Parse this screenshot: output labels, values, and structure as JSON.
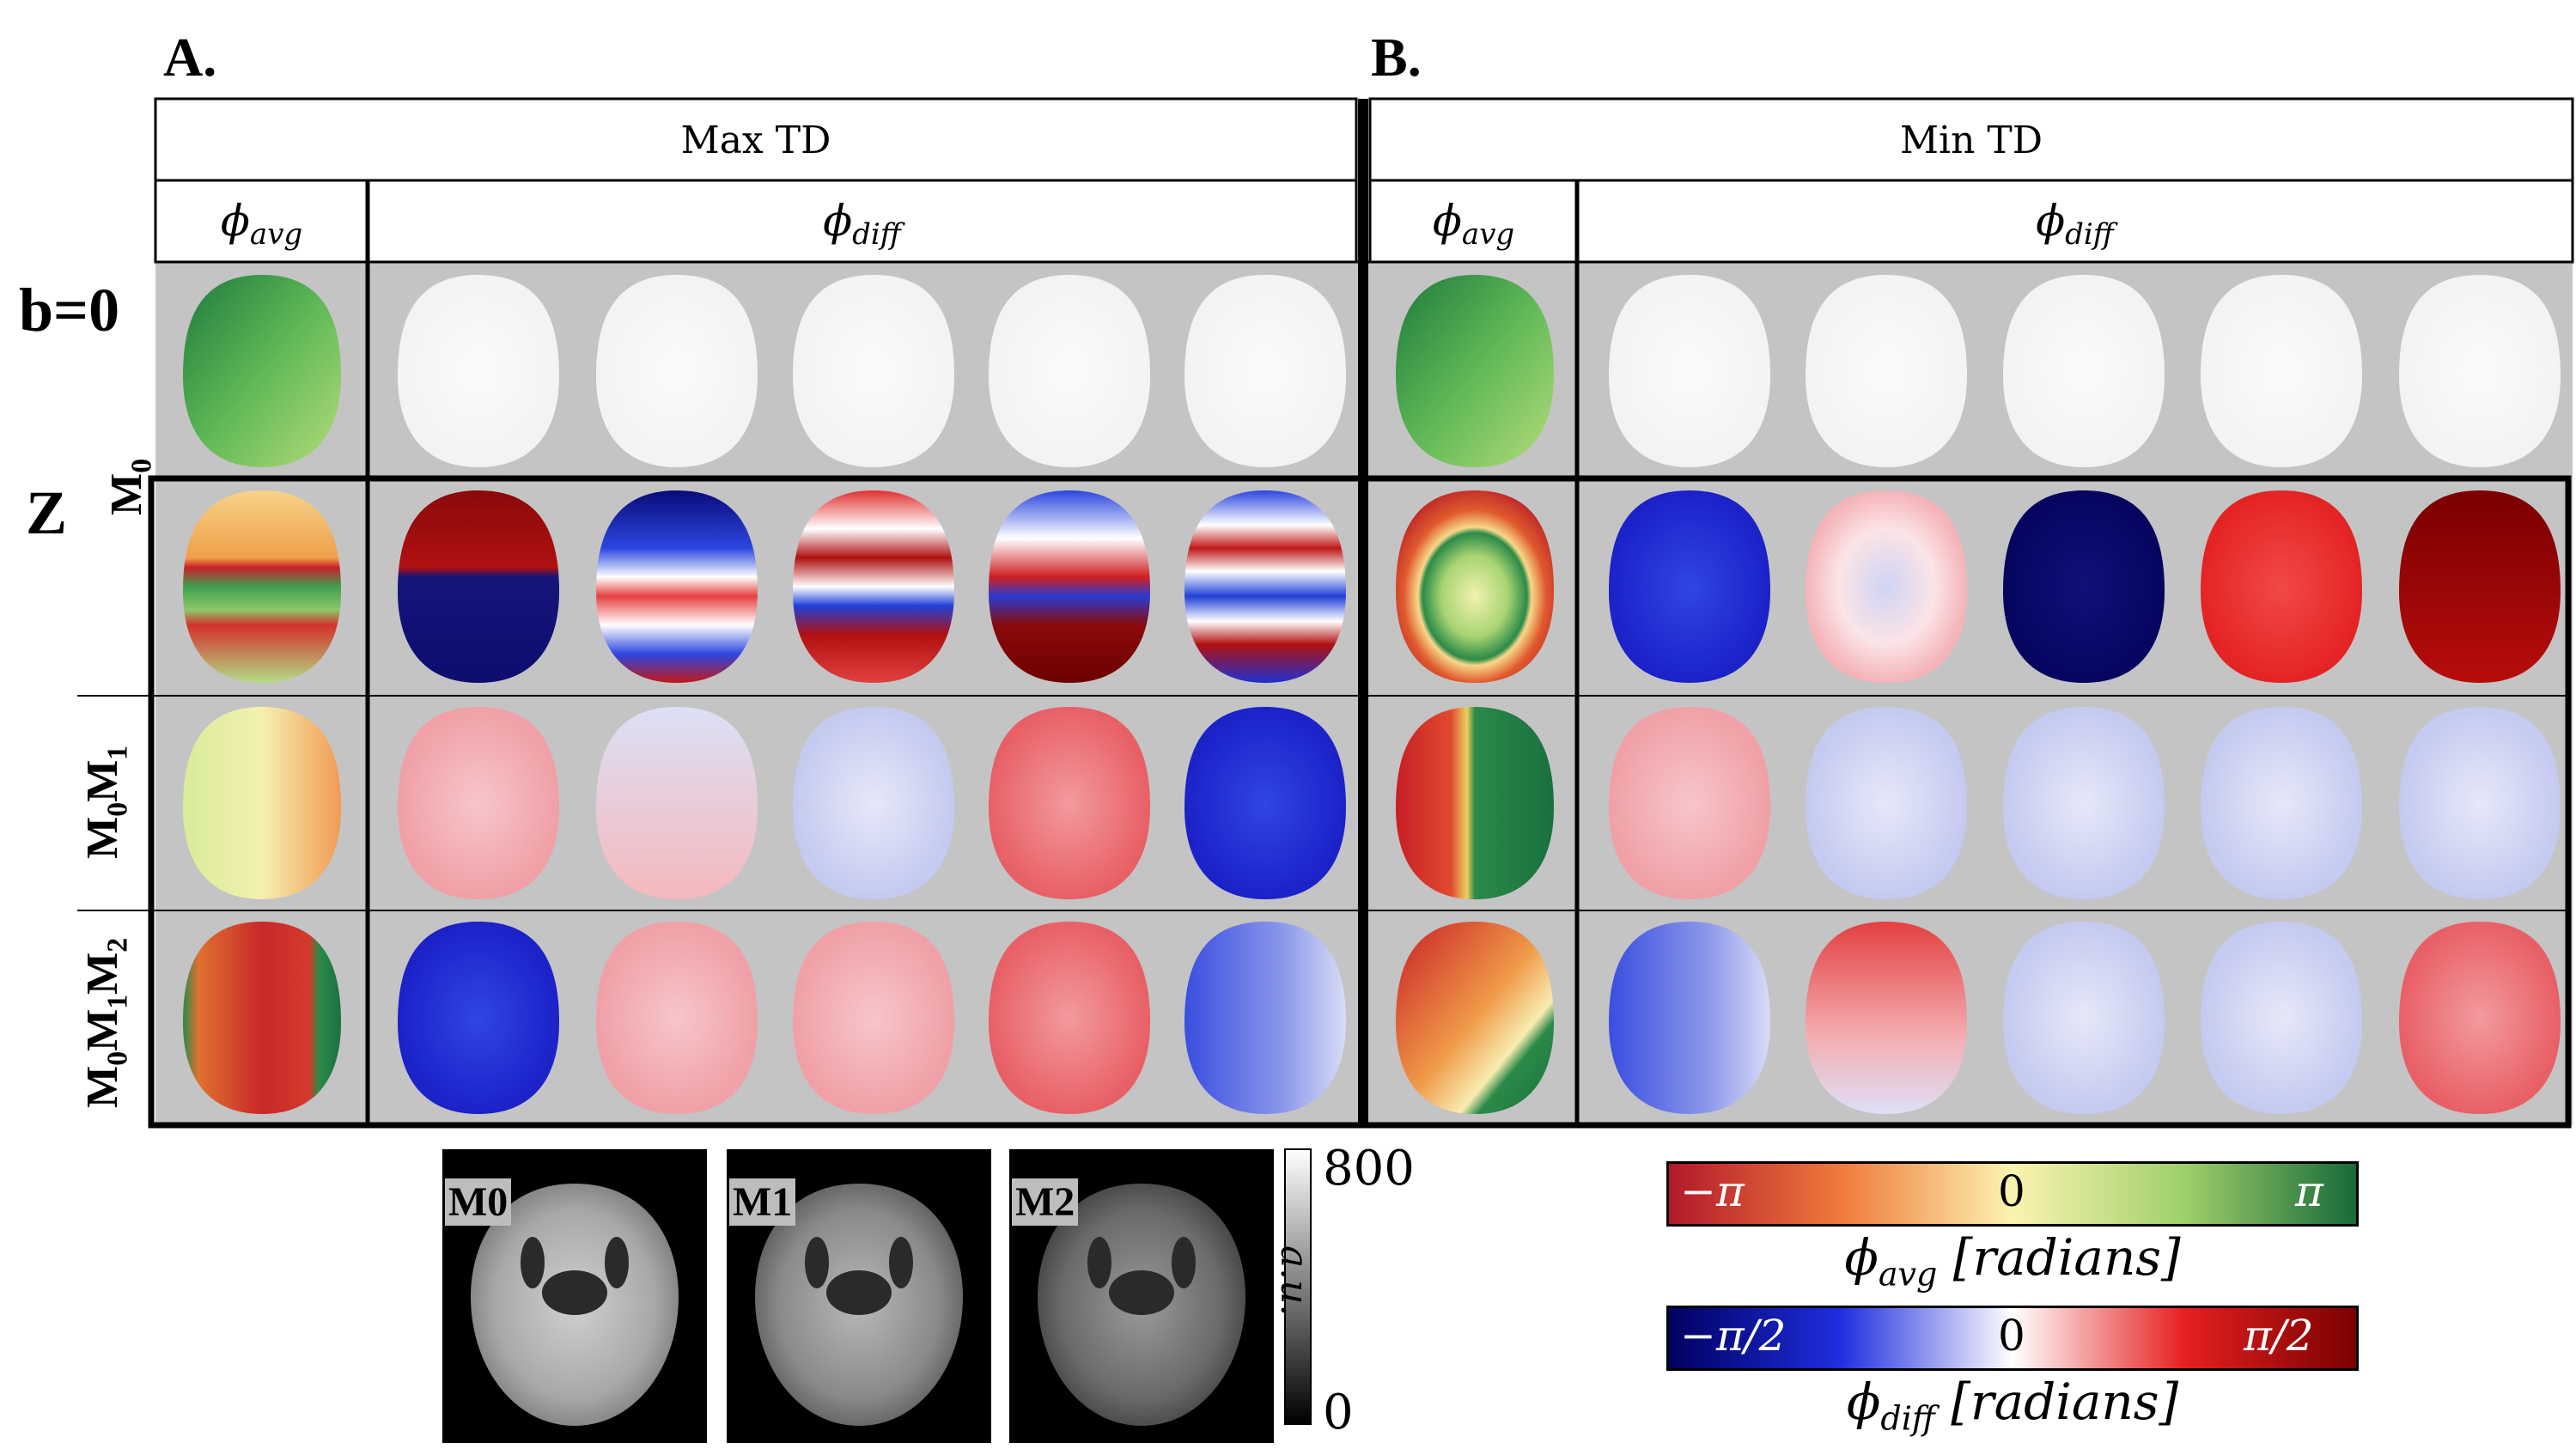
{
  "panels": {
    "a_letter": "A.",
    "b_letter": "B.",
    "a_title": "Max TD",
    "b_title": "Min TD"
  },
  "columns": {
    "phi_avg": "ϕ",
    "phi_avg_sub": "avg",
    "phi_diff": "ϕ",
    "phi_diff_sub": "diff"
  },
  "rows": {
    "b0": "b=0",
    "z": "Z",
    "m0": "M",
    "m0_sub": "0",
    "m0m1_a": "M",
    "m0m1_a_sub": "0",
    "m0m1_b": "M",
    "m0m1_b_sub": "1",
    "m0m1m2_a": "M",
    "m0m1m2_a_sub": "0",
    "m0m1m2_b": "M",
    "m0m1m2_b_sub": "1",
    "m0m1m2_c": "M",
    "m0m1m2_c_sub": "2"
  },
  "magnitude": {
    "labels": [
      "M0",
      "M1",
      "M2"
    ],
    "cbar_max": "800",
    "cbar_min": "0",
    "cbar_unit": "a.u."
  },
  "colorbars": {
    "avg": {
      "left": "−π",
      "mid": "0",
      "right": "π",
      "label": "ϕ",
      "label_sub": "avg",
      "label_unit": "[radians]",
      "colors": [
        "#b2182b",
        "#f07a3c",
        "#fbf3b0",
        "#9fd06a",
        "#176a3a"
      ]
    },
    "diff": {
      "left": "−π/2",
      "mid": "0",
      "right": "π/2",
      "label": "ϕ",
      "label_sub": "diff",
      "label_unit": "[radians]",
      "colors": [
        "#000060",
        "#1f2ee0",
        "#ffffff",
        "#e62020",
        "#7a0000"
      ]
    }
  },
  "brain_maps": {
    "b0_a": [
      "green",
      "white",
      "white",
      "white",
      "white",
      "white"
    ],
    "b0_b": [
      "green",
      "white",
      "white",
      "white",
      "white",
      "white"
    ],
    "m0_a": [
      "mix-avg",
      "wrap1",
      "wrap2",
      "wrap3",
      "wrap4",
      "wrap5"
    ],
    "m0_b": [
      "ring-avg",
      "blue",
      "lightpink",
      "darkblue",
      "red",
      "darkred"
    ],
    "m0m1_a": [
      "yellow-orange",
      "pink",
      "paleblue-pink",
      "paleblue",
      "pink-red",
      "blue"
    ],
    "m0m1_b": [
      "red-green",
      "pink",
      "paleblue",
      "paleblue",
      "paleblue",
      "paleblue"
    ],
    "m0m1m2_a": [
      "red-greenedge",
      "blue",
      "pink",
      "pink",
      "pink-red",
      "blue-pale"
    ],
    "m0m1m2_b": [
      "orange-greenedge",
      "blue-pale",
      "red-pale",
      "paleblue",
      "paleblue",
      "pink-red"
    ]
  }
}
